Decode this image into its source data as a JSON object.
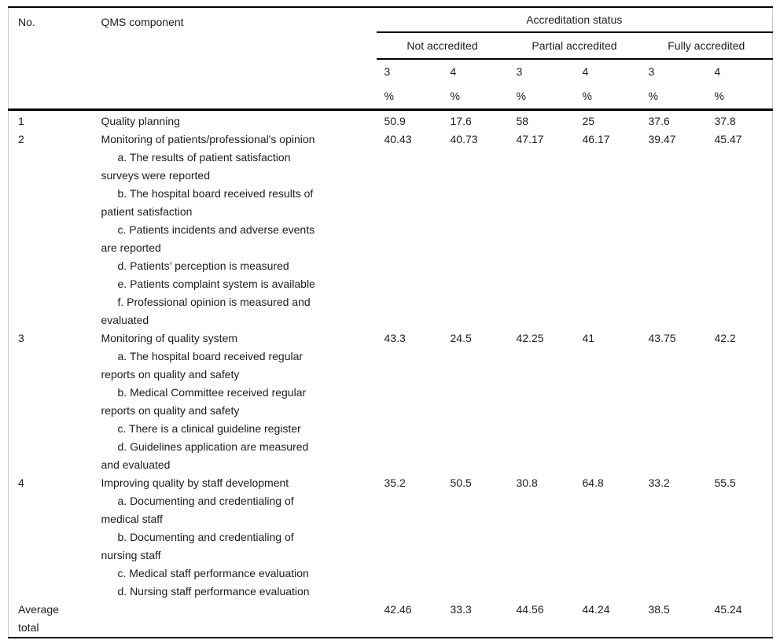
{
  "table": {
    "columns": {
      "no_label": "No.",
      "component_label": "QMS component",
      "status_label": "Accreditation status",
      "groups": [
        "Not accredited",
        "Partial accredited",
        "Fully accredited"
      ],
      "sub_columns": [
        "3",
        "4"
      ],
      "unit": "%"
    },
    "rows": [
      {
        "no": "1",
        "component": [
          "Quality planning"
        ],
        "values": [
          "50.9",
          "17.6",
          "58",
          "25",
          "37.6",
          "37.8"
        ]
      },
      {
        "no": "2",
        "component": [
          "Monitoring of patients/professional's opinion",
          "a. The results of patient satisfaction",
          "surveys were reported",
          "b. The hospital board received results of",
          "patient satisfaction",
          "c. Patients incidents and adverse events",
          "are reported",
          "d. Patients’ perception is measured",
          "e. Patients complaint system is available",
          "f. Professional opinion is measured and",
          "evaluated"
        ],
        "values": [
          "40.43",
          "40.73",
          "47.17",
          "46.17",
          "39.47",
          "45.47"
        ]
      },
      {
        "no": "3",
        "component": [
          "Monitoring of quality system",
          "a. The hospital board received regular",
          "reports on quality and safety",
          "b. Medical Committee received regular",
          "reports on quality and safety",
          "c. There is a clinical guideline register",
          "d. Guidelines application are measured",
          "and evaluated"
        ],
        "values": [
          "43.3",
          "24.5",
          "42.25",
          "41",
          "43.75",
          "42.2"
        ]
      },
      {
        "no": "4",
        "component": [
          "Improving quality by staff development",
          "a. Documenting and credentialing of",
          "medical staff",
          "b. Documenting and credentialing of",
          "nursing staff",
          "c. Medical staff performance evaluation",
          "d. Nursing staff performance evaluation"
        ],
        "values": [
          "35.2",
          "50.5",
          "30.8",
          "64.8",
          "33.2",
          "55.5"
        ]
      },
      {
        "no": "Average\ntotal",
        "component": [],
        "values": [
          "42.46",
          "33.3",
          "44.56",
          "44.24",
          "38.5",
          "45.24"
        ]
      }
    ]
  }
}
